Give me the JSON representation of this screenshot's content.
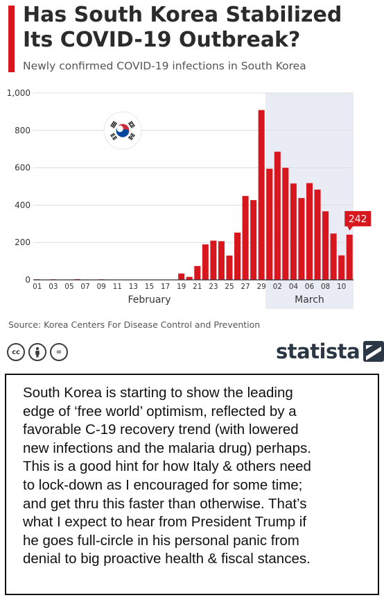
{
  "header": {
    "title": "Has South Korea Stabilized Its COVID-19 Outbreak?",
    "subtitle": "Newly confirmed COVID-19 infections in South Korea"
  },
  "chart_data": {
    "type": "bar",
    "title": "Has South Korea Stabilized Its COVID-19 Outbreak?",
    "subtitle": "Newly confirmed COVID-19 infections in South Korea",
    "categories": [
      "2020-02-01",
      "2020-02-02",
      "2020-02-03",
      "2020-02-04",
      "2020-02-05",
      "2020-02-06",
      "2020-02-07",
      "2020-02-08",
      "2020-02-09",
      "2020-02-10",
      "2020-02-11",
      "2020-02-12",
      "2020-02-13",
      "2020-02-14",
      "2020-02-15",
      "2020-02-16",
      "2020-02-17",
      "2020-02-18",
      "2020-02-19",
      "2020-02-20",
      "2020-02-21",
      "2020-02-22",
      "2020-02-23",
      "2020-02-24",
      "2020-02-25",
      "2020-02-26",
      "2020-02-27",
      "2020-02-28",
      "2020-02-29",
      "2020-03-01",
      "2020-03-02",
      "2020-03-03",
      "2020-03-04",
      "2020-03-05",
      "2020-03-06",
      "2020-03-07",
      "2020-03-08",
      "2020-03-09",
      "2020-03-10",
      "2020-03-11"
    ],
    "values": [
      3,
      0,
      3,
      1,
      2,
      4,
      1,
      0,
      3,
      0,
      1,
      0,
      0,
      0,
      0,
      0,
      1,
      1,
      34,
      16,
      74,
      190,
      210,
      207,
      130,
      253,
      449,
      427,
      909,
      595,
      686,
      600,
      516,
      438,
      518,
      483,
      367,
      248,
      131,
      242
    ],
    "tick_labels": [
      "01",
      "03",
      "05",
      "07",
      "09",
      "11",
      "13",
      "15",
      "17",
      "19",
      "21",
      "23",
      "25",
      "27",
      "29",
      "02",
      "04",
      "06",
      "08",
      "10"
    ],
    "month_labels": [
      "February",
      "March"
    ],
    "highlight_label": "242",
    "ylim": [
      0,
      1000
    ],
    "y_ticks": [
      0,
      200,
      400,
      600,
      800,
      1000
    ],
    "y_tick_labels": [
      "0",
      "200",
      "400",
      "600",
      "800",
      "1,000"
    ],
    "xlabel": "",
    "ylabel": "",
    "grid": true,
    "shaded_region": [
      "2020-03-01",
      "2020-03-11"
    ],
    "bar_color": "#d7161e",
    "shade_color": "#e9ecf4",
    "grid_color": "#dcdcdc"
  },
  "footer": {
    "source": "Source: Korea Centers For Disease Control and Prevention",
    "license_icons": [
      "cc-icon",
      "by-icon",
      "nd-icon"
    ],
    "license_text": [
      "cc",
      "",
      "="
    ],
    "brand": "statista"
  },
  "comment": {
    "lines": [
      "South Korea is starting to show the leading",
      "edge of ‘free world’ optimism, reflected by a",
      "favorable C-19 recovery trend (with lowered",
      "new infections and the malaria drug) perhaps.",
      "This is a good hint for how Italy & others need",
      "to lock-down as I encouraged for some time;",
      "and get thru this faster than otherwise. That’s",
      "what I expect to hear from President Trump if",
      "he goes full-circle in his personal panic from",
      "denial to big proactive health & fiscal stances."
    ]
  },
  "colors": {
    "accent": "#d7161e",
    "text_dark": "#2b2b2b",
    "text_muted": "#555555",
    "brand": "#2b3745"
  }
}
